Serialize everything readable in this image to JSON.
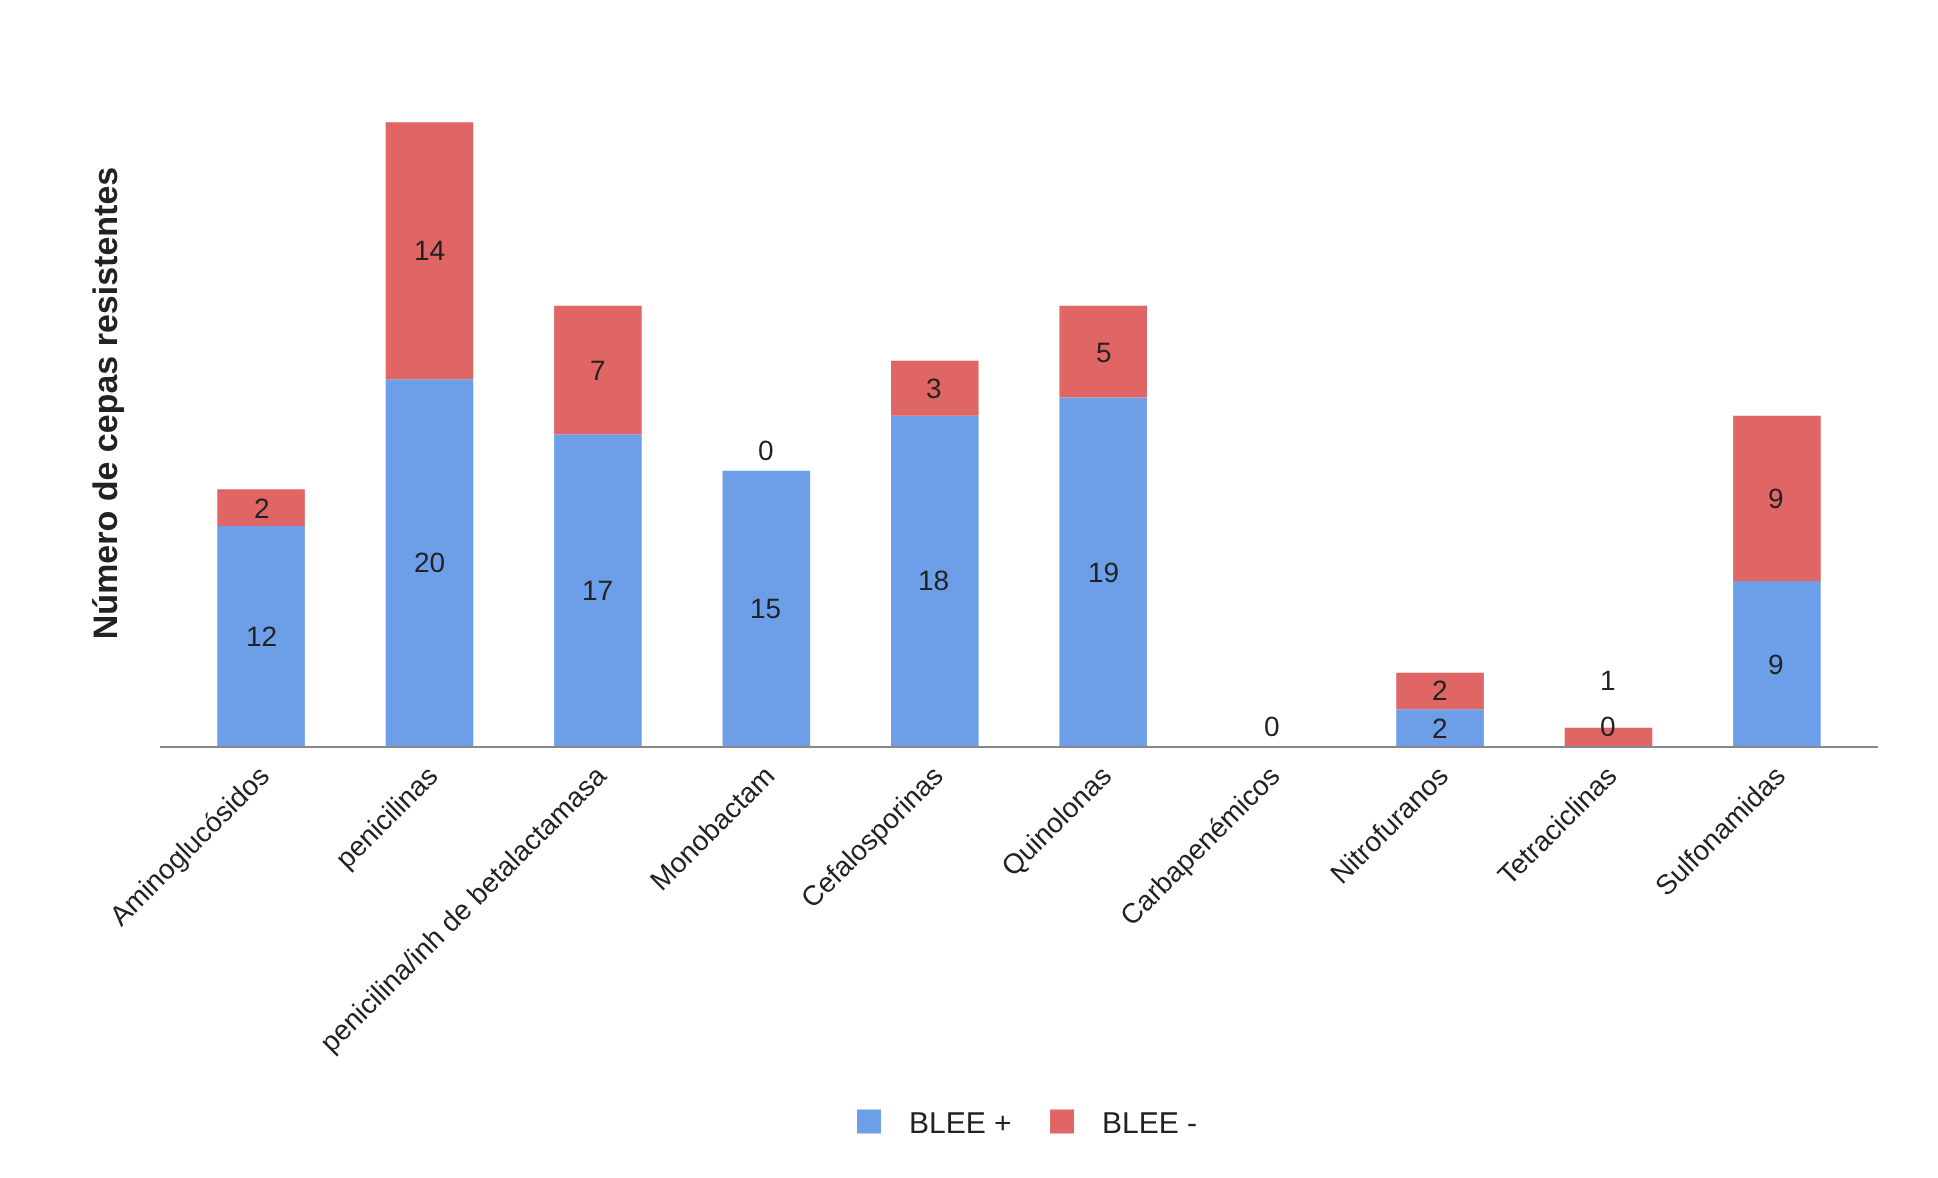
{
  "chart_data": {
    "type": "bar",
    "stacked": true,
    "ylabel": "Número de cepas resistentes",
    "categories": [
      "Aminoglucósidos",
      "penicilinas",
      "penicilina/inh de betalactamasa",
      "Monobactam",
      "Cefalosporinas",
      "Quinolonas",
      "Carbapenémicos",
      "Nitrofuranos",
      "Tetraciclinas",
      "Sulfonamidas"
    ],
    "series": [
      {
        "name": "BLEE +",
        "color": "#6d9ee8",
        "values": [
          12,
          20,
          17,
          15,
          18,
          19,
          0,
          2,
          0,
          9
        ]
      },
      {
        "name": "BLEE -",
        "color": "#e06666",
        "values": [
          2,
          14,
          7,
          0,
          3,
          5,
          0,
          2,
          1,
          9
        ],
        "value_labels": [
          "2",
          "14",
          "7",
          "0",
          "3",
          "5",
          null,
          "2",
          "1",
          "9"
        ]
      }
    ],
    "data_labels": true,
    "legend": "bottom"
  }
}
